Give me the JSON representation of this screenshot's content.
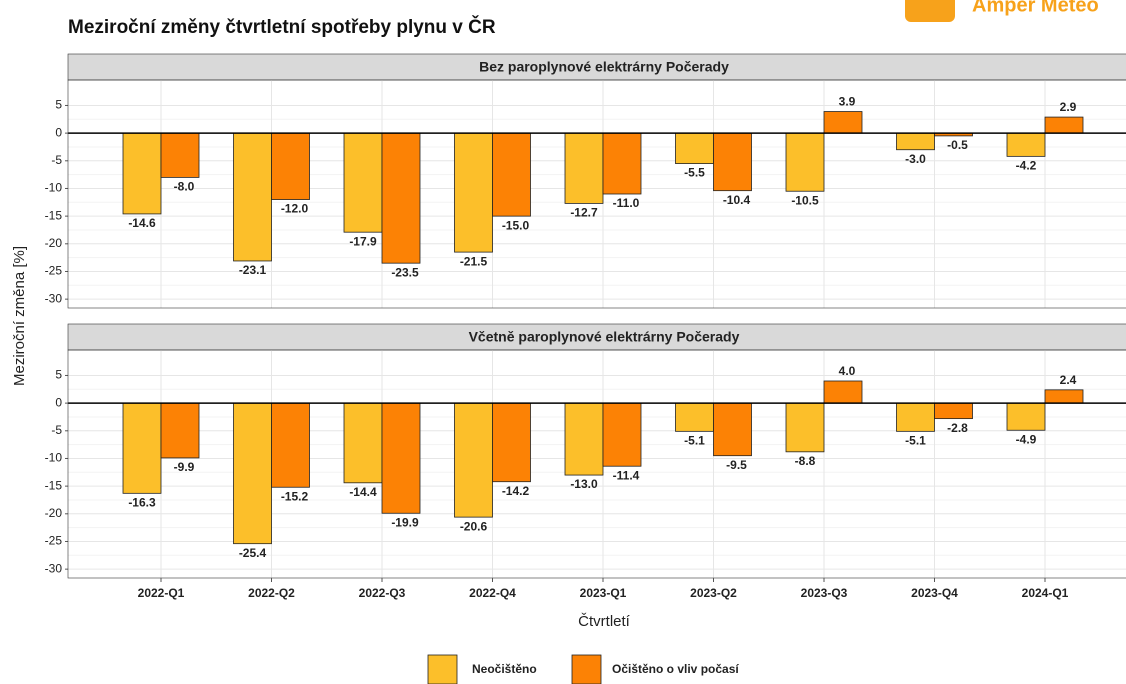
{
  "title": "Meziroční změny čtvrtletní spotřeby plynu v ČR",
  "logo": "Amper Meteo",
  "ylabel": "Meziroční změna [%]",
  "xlabel": "Čtvrtletí",
  "chart_data": [
    {
      "type": "bar",
      "subtitle": "Bez paroplynové elektrárny Počerady",
      "categories": [
        "2022-Q1",
        "2022-Q2",
        "2022-Q3",
        "2022-Q4",
        "2023-Q1",
        "2023-Q2",
        "2023-Q3",
        "2023-Q4",
        "2024-Q1"
      ],
      "series": [
        {
          "name": "Neočištěno",
          "color": "#fcbf2a",
          "values": [
            -14.6,
            -23.1,
            -17.9,
            -21.5,
            -12.7,
            -5.5,
            -10.5,
            -3.0,
            -4.2
          ],
          "value_labels": [
            "-14.6",
            "-23.1",
            "-17.9",
            "-21.5",
            "-12.7",
            "-5.5",
            "-10.5",
            "-3.0",
            "-4.2"
          ]
        },
        {
          "name": "Očištěno o vliv počasí",
          "color": "#fc8205",
          "values": [
            -8.0,
            -12.0,
            -23.5,
            -15.0,
            -11.0,
            -10.4,
            3.9,
            -0.5,
            2.9
          ],
          "value_labels": [
            "-8.0",
            "-12.0",
            "-23.5",
            "-15.0",
            "-11.0",
            "-10.4",
            "3.9",
            "-0.5",
            "2.9"
          ]
        }
      ],
      "ylim": [
        -31.6,
        9.6
      ],
      "yticks": [
        5,
        0,
        -5,
        -10,
        -15,
        -20,
        -25,
        -30
      ],
      "grid": true
    },
    {
      "type": "bar",
      "subtitle": "Včetně paroplynové elektrárny Počerady",
      "categories": [
        "2022-Q1",
        "2022-Q2",
        "2022-Q3",
        "2022-Q4",
        "2023-Q1",
        "2023-Q2",
        "2023-Q3",
        "2023-Q4",
        "2024-Q1"
      ],
      "series": [
        {
          "name": "Neočištěno",
          "color": "#fcbf2a",
          "values": [
            -16.3,
            -25.4,
            -14.4,
            -20.6,
            -13.0,
            -5.1,
            -8.8,
            -5.1,
            -4.9
          ],
          "value_labels": [
            "-16.3",
            "-25.4",
            "-14.4",
            "-20.6",
            "-13.0",
            "-5.1",
            "-8.8",
            "-5.1",
            "-4.9"
          ]
        },
        {
          "name": "Očištěno o vliv počasí",
          "color": "#fc8205",
          "values": [
            -9.9,
            -15.2,
            -19.9,
            -14.2,
            -11.4,
            -9.5,
            4.0,
            -2.8,
            2.4
          ],
          "value_labels": [
            "-9.9",
            "-15.2",
            "-19.9",
            "-14.2",
            "-11.4",
            "-9.5",
            "4.0",
            "-2.8",
            "2.4"
          ]
        }
      ],
      "ylim": [
        -31.6,
        9.6
      ],
      "yticks": [
        5,
        0,
        -5,
        -10,
        -15,
        -20,
        -25,
        -30
      ],
      "grid": true
    }
  ]
}
